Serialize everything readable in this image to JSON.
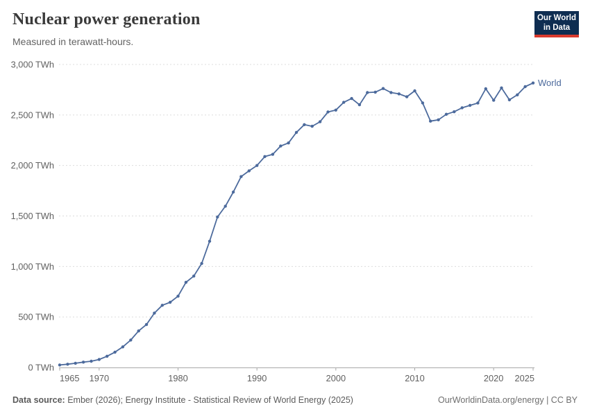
{
  "header": {
    "title": "Nuclear power generation",
    "subtitle": "Measured in terawatt-hours.",
    "logo_line1": "Our World",
    "logo_line2": "in Data"
  },
  "chart_data": {
    "type": "line",
    "title": "Nuclear power generation",
    "unit": "TWh",
    "xlim": [
      1965,
      2025
    ],
    "ylim": [
      0,
      3000
    ],
    "x_ticks": [
      1965,
      1970,
      1980,
      1990,
      2000,
      2010,
      2020,
      2025
    ],
    "y_ticks": [
      0,
      500,
      1000,
      1500,
      2000,
      2500,
      3000
    ],
    "y_tick_suffix": " TWh",
    "grid": "horizontal-dashed",
    "legend": "end-of-line-label",
    "series": [
      {
        "name": "World",
        "color": "#4c6a9c",
        "x": [
          1965,
          1966,
          1967,
          1968,
          1969,
          1970,
          1971,
          1972,
          1973,
          1974,
          1975,
          1976,
          1977,
          1978,
          1979,
          1980,
          1981,
          1982,
          1983,
          1984,
          1985,
          1986,
          1987,
          1988,
          1989,
          1990,
          1991,
          1992,
          1993,
          1994,
          1995,
          1996,
          1997,
          1998,
          1999,
          2000,
          2001,
          2002,
          2003,
          2004,
          2005,
          2006,
          2007,
          2008,
          2009,
          2010,
          2011,
          2012,
          2013,
          2014,
          2015,
          2016,
          2017,
          2018,
          2019,
          2020,
          2021,
          2022,
          2023,
          2024,
          2025
        ],
        "values": [
          25,
          32,
          42,
          53,
          62,
          79,
          111,
          152,
          204,
          271,
          362,
          425,
          538,
          616,
          645,
          706,
          843,
          905,
          1030,
          1250,
          1490,
          1597,
          1737,
          1890,
          1947,
          2000,
          2088,
          2110,
          2193,
          2223,
          2327,
          2404,
          2388,
          2433,
          2530,
          2548,
          2625,
          2663,
          2601,
          2722,
          2726,
          2762,
          2722,
          2709,
          2680,
          2739,
          2619,
          2439,
          2452,
          2507,
          2532,
          2571,
          2595,
          2618,
          2760,
          2646,
          2768,
          2650,
          2699,
          2780,
          2817
        ]
      }
    ]
  },
  "footer": {
    "datasource_label": "Data source:",
    "datasource_text": "Ember (2026); Energy Institute - Statistical Review of World Energy (2025)",
    "link_text": "OurWorldinData.org/energy | CC BY"
  },
  "colors": {
    "line": "#4c6a9c",
    "grid": "#dcdcdc",
    "axis": "#a8a8a8",
    "tick_text": "#606060",
    "logo_bg": "#0e2d51",
    "logo_red": "#d93a2e"
  }
}
